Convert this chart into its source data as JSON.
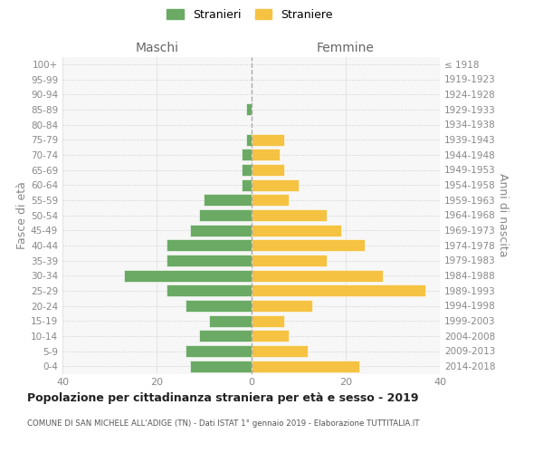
{
  "age_groups": [
    "0-4",
    "5-9",
    "10-14",
    "15-19",
    "20-24",
    "25-29",
    "30-34",
    "35-39",
    "40-44",
    "45-49",
    "50-54",
    "55-59",
    "60-64",
    "65-69",
    "70-74",
    "75-79",
    "80-84",
    "85-89",
    "90-94",
    "95-99",
    "100+"
  ],
  "birth_years": [
    "2014-2018",
    "2009-2013",
    "2004-2008",
    "1999-2003",
    "1994-1998",
    "1989-1993",
    "1984-1988",
    "1979-1983",
    "1974-1978",
    "1969-1973",
    "1964-1968",
    "1959-1963",
    "1954-1958",
    "1949-1953",
    "1944-1948",
    "1939-1943",
    "1934-1938",
    "1929-1933",
    "1924-1928",
    "1919-1923",
    "≤ 1918"
  ],
  "maschi": [
    13,
    14,
    11,
    9,
    14,
    18,
    27,
    18,
    18,
    13,
    11,
    10,
    2,
    2,
    2,
    1,
    0,
    1,
    0,
    0,
    0
  ],
  "femmine": [
    23,
    12,
    8,
    7,
    13,
    37,
    28,
    16,
    24,
    19,
    16,
    8,
    10,
    7,
    6,
    7,
    0,
    0,
    0,
    0,
    0
  ],
  "male_color": "#6aaa64",
  "female_color": "#f5c242",
  "bar_edge_color": "white",
  "grid_color": "#cccccc",
  "grid_color_x": "#dddddd",
  "center_line_color": "#aaaaaa",
  "title_main": "Popolazione per cittadinanza straniera per età e sesso - 2019",
  "title_sub": "COMUNE DI SAN MICHELE ALL'ADIGE (TN) - Dati ISTAT 1° gennaio 2019 - Elaborazione TUTTITALIA.IT",
  "ylabel_left": "Fasce di età",
  "ylabel_right": "Anni di nascita",
  "header_left": "Maschi",
  "header_right": "Femmine",
  "legend_stranieri": "Stranieri",
  "legend_straniere": "Straniere",
  "xlim": 40,
  "background_color": "#ffffff",
  "plot_bg_color": "#f7f7f7"
}
